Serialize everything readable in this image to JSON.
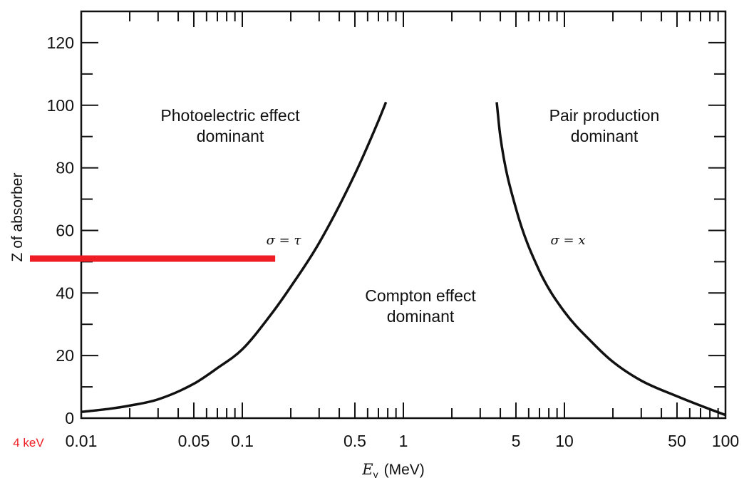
{
  "chart_data": {
    "type": "line",
    "xlabel_symbol": "E",
    "xlabel_subscript": "γ",
    "xlabel_unit": "(MeV)",
    "ylabel": "Z of absorber",
    "x_scale": "log",
    "xlim": [
      0.01,
      100
    ],
    "ylim": [
      0,
      130
    ],
    "x_tick_labels": [
      {
        "value": 0.01,
        "label": "0.01"
      },
      {
        "value": 0.05,
        "label": "0.05"
      },
      {
        "value": 0.1,
        "label": "0.1"
      },
      {
        "value": 0.5,
        "label": "0.5"
      },
      {
        "value": 1,
        "label": "1"
      },
      {
        "value": 5,
        "label": "5"
      },
      {
        "value": 10,
        "label": "10"
      },
      {
        "value": 50,
        "label": "50"
      },
      {
        "value": 100,
        "label": "100"
      }
    ],
    "y_tick_labels": [
      {
        "value": 0,
        "label": "0"
      },
      {
        "value": 20,
        "label": "20"
      },
      {
        "value": 40,
        "label": "40"
      },
      {
        "value": 60,
        "label": "60"
      },
      {
        "value": 80,
        "label": "80"
      },
      {
        "value": 100,
        "label": "100"
      },
      {
        "value": 120,
        "label": "120"
      }
    ],
    "series": [
      {
        "label": "σ = τ",
        "x": [
          0.01,
          0.015,
          0.02,
          0.03,
          0.05,
          0.07,
          0.1,
          0.15,
          0.2,
          0.3,
          0.5,
          0.7,
          0.78
        ],
        "y": [
          2,
          3,
          4,
          6,
          11,
          16,
          22,
          33,
          42,
          56,
          78,
          95,
          101
        ]
      },
      {
        "label": "σ = x",
        "x": [
          3.8,
          4,
          5,
          7,
          10,
          15,
          20,
          30,
          50,
          70,
          100
        ],
        "y": [
          101,
          90,
          67,
          47,
          34,
          24,
          18,
          12,
          7,
          4,
          1
        ]
      }
    ],
    "region_labels": [
      {
        "lines": [
          "Photoelectric effect",
          "dominant"
        ],
        "x": 0.07,
        "y": 95
      },
      {
        "lines": [
          "Compton effect",
          "dominant"
        ],
        "x": 1.1,
        "y": 38
      },
      {
        "lines": [
          "Pair production",
          "dominant"
        ],
        "x": 13.8,
        "y": 95
      }
    ],
    "annotations": [
      {
        "text": "σ = τ",
        "x": 0.15,
        "y": 56
      },
      {
        "text": "σ = x",
        "x": 7,
        "y": 56
      }
    ],
    "marker": {
      "label": "4 keV",
      "z_value": 51,
      "x_end": 0.16,
      "color": "#ee1c24"
    },
    "grid": false,
    "line_color": "#111111"
  }
}
